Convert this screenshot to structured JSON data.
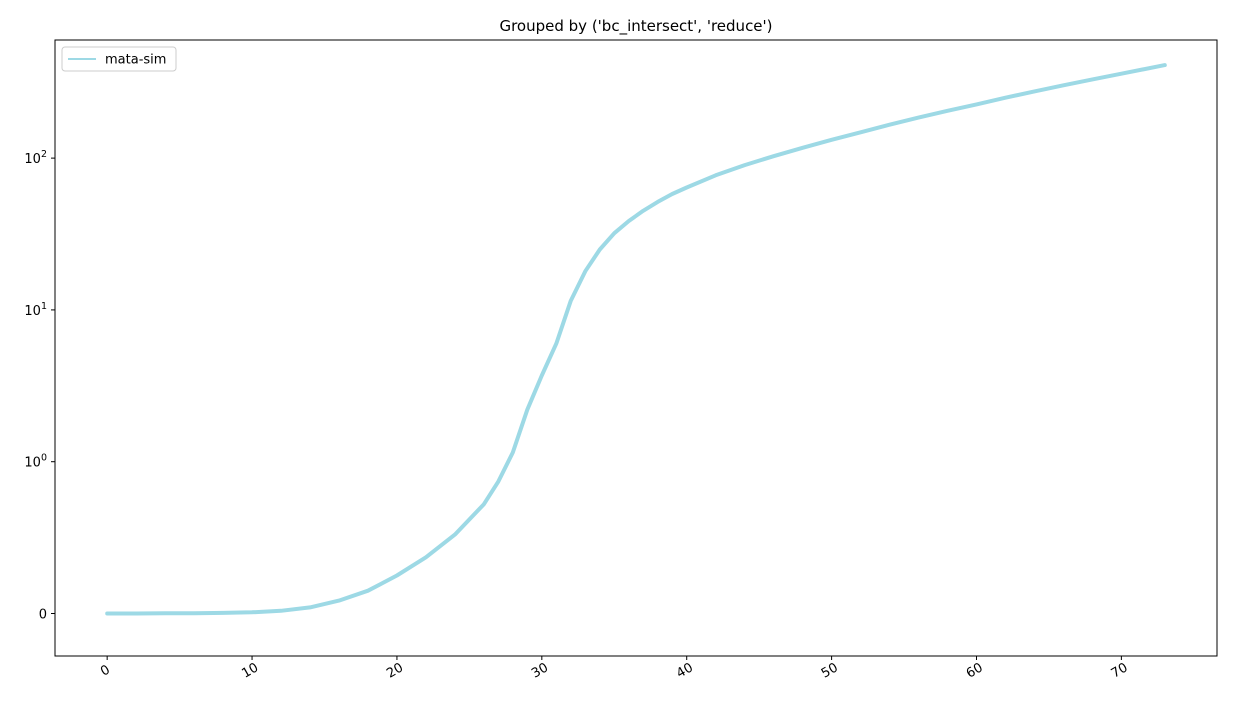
{
  "chart_data": {
    "type": "line",
    "title": "Grouped by ('bc_intersect', 'reduce')",
    "xlabel": "",
    "ylabel": "",
    "x_scale": "linear",
    "y_scale": "symlog",
    "xlim": [
      -3.6,
      76.6
    ],
    "ylim": [
      -0.28,
      600
    ],
    "xticks": [
      0,
      10,
      20,
      30,
      40,
      50,
      60,
      70
    ],
    "yticks": [
      {
        "value": 0,
        "label": "0"
      },
      {
        "value": 1,
        "label": "10^0"
      },
      {
        "value": 10,
        "label": "10^1"
      },
      {
        "value": 100,
        "label": "10^2"
      }
    ],
    "grid": false,
    "legend_position": "top-left",
    "series": [
      {
        "name": "mata-sim",
        "color": "#9dd9e5",
        "x": [
          0,
          2,
          4,
          6,
          8,
          10,
          12,
          14,
          16,
          18,
          20,
          22,
          24,
          26,
          27,
          28,
          29,
          30,
          31,
          32,
          33,
          34,
          35,
          36,
          37,
          38,
          39,
          40,
          42,
          44,
          46,
          48,
          50,
          52,
          54,
          56,
          58,
          60,
          62,
          64,
          66,
          68,
          70,
          73
        ],
        "y": [
          0.0,
          0.0,
          0.001,
          0.002,
          0.004,
          0.008,
          0.018,
          0.04,
          0.085,
          0.15,
          0.25,
          0.37,
          0.52,
          0.72,
          0.87,
          1.15,
          2.2,
          3.7,
          6.0,
          11.5,
          18,
          25,
          32,
          38.5,
          45,
          51.5,
          58,
          64,
          77,
          90,
          103,
          117,
          132,
          148,
          166,
          185,
          205,
          226,
          250,
          275,
          302,
          330,
          360,
          410
        ]
      }
    ]
  }
}
